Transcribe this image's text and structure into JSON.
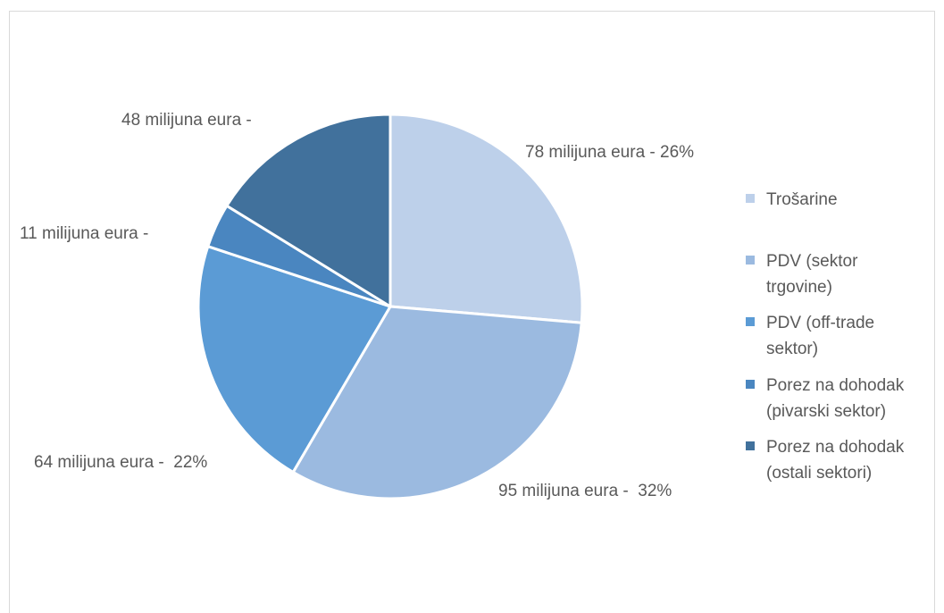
{
  "chart_data": {
    "type": "pie",
    "title": "",
    "slices": [
      {
        "name": "Trošarine",
        "value": 78,
        "percent": 26,
        "data_label": "78 milijuna eura - 26%",
        "color": "#bdd0ea"
      },
      {
        "name": "PDV (sektor trgovine)",
        "value": 95,
        "percent": 32,
        "data_label": "95 milijuna eura -  32%",
        "color": "#9bbae0"
      },
      {
        "name": "PDV (off-trade sektor)",
        "value": 64,
        "percent": 22,
        "data_label": "64 milijuna eura -  22%",
        "color": "#5b9bd5"
      },
      {
        "name": "Porez na dohodak (pivarski sektor)",
        "value": 11,
        "percent": 4,
        "data_label": "11 milijuna eura -",
        "color": "#4a86c0"
      },
      {
        "name": "Porez na dohodak (ostali sektori)",
        "value": 48,
        "percent": 16,
        "data_label": "48 milijuna eura -",
        "color": "#41719c"
      }
    ],
    "legend": {
      "placement": "right",
      "entries": [
        {
          "lines": [
            "Trošarine"
          ],
          "color": "#bdd0ea"
        },
        {
          "lines": [
            "PDV (sektor",
            "trgovine)"
          ],
          "color": "#9bbae0"
        },
        {
          "lines": [
            "PDV (off-trade",
            "sektor)"
          ],
          "color": "#5b9bd5"
        },
        {
          "lines": [
            "Porez na dohodak",
            "(pivarski sektor)"
          ],
          "color": "#4a86c0"
        },
        {
          "lines": [
            "Porez na dohodak",
            "(ostali sektori)"
          ],
          "color": "#41719c"
        }
      ]
    }
  }
}
